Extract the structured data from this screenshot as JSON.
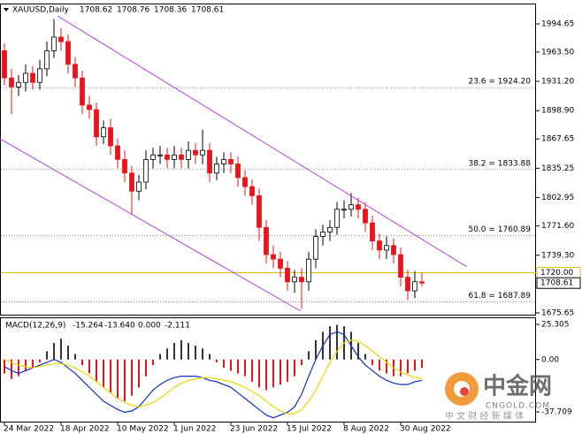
{
  "chart_data": [
    {
      "type": "candlestick",
      "title": "XAUUSD,Daily",
      "quote": [
        1708.62,
        1708.76,
        1708.36,
        1708.61
      ],
      "categories": [
        "24 Mar 2022",
        null,
        null,
        null,
        null,
        null,
        null,
        null,
        "18 Apr 2022",
        null,
        null,
        null,
        null,
        null,
        null,
        null,
        "10 May 2022",
        null,
        null,
        null,
        null,
        null,
        null,
        null,
        "1 Jun 2022",
        null,
        null,
        null,
        null,
        null,
        null,
        null,
        "23 Jun 2022",
        null,
        null,
        null,
        null,
        null,
        null,
        null,
        "15 Jul 2022",
        null,
        null,
        null,
        null,
        null,
        null,
        null,
        "8 Aug 2022",
        null,
        null,
        null,
        null,
        null,
        null,
        null,
        "30 Aug 2022",
        null,
        null,
        null
      ],
      "open": [
        1965,
        1935,
        1925,
        1930,
        1940,
        1930,
        1945,
        1965,
        1980,
        1975,
        1950,
        1935,
        1905,
        1900,
        1870,
        1880,
        1860,
        1845,
        1830,
        1810,
        1820,
        1845,
        1850,
        1850,
        1845,
        1850,
        1845,
        1855,
        1850,
        1855,
        1830,
        1840,
        1845,
        1840,
        1825,
        1815,
        1805,
        1770,
        1740,
        1735,
        1725,
        1710,
        1715,
        1710,
        1735,
        1760,
        1765,
        1770,
        1790,
        1790,
        1795,
        1790,
        1775,
        1755,
        1745,
        1750,
        1740,
        1715,
        1700,
        1710
      ],
      "high": [
        1973,
        1945,
        1938,
        1950,
        1948,
        1955,
        1975,
        2000,
        1990,
        1983,
        1958,
        1943,
        1915,
        1908,
        1888,
        1890,
        1868,
        1855,
        1838,
        1828,
        1855,
        1858,
        1860,
        1858,
        1860,
        1858,
        1865,
        1863,
        1878,
        1863,
        1848,
        1853,
        1853,
        1848,
        1833,
        1823,
        1813,
        1778,
        1750,
        1743,
        1733,
        1723,
        1725,
        1743,
        1768,
        1773,
        1778,
        1798,
        1800,
        1808,
        1803,
        1798,
        1783,
        1763,
        1760,
        1758,
        1748,
        1723,
        1722,
        1720
      ],
      "low": [
        1927,
        1895,
        1915,
        1920,
        1922,
        1922,
        1937,
        1957,
        1965,
        1940,
        1925,
        1895,
        1890,
        1860,
        1862,
        1850,
        1835,
        1820,
        1785,
        1800,
        1812,
        1835,
        1840,
        1835,
        1835,
        1835,
        1835,
        1840,
        1840,
        1820,
        1822,
        1830,
        1830,
        1815,
        1805,
        1795,
        1755,
        1730,
        1725,
        1715,
        1700,
        1698,
        1680,
        1700,
        1725,
        1750,
        1755,
        1762,
        1780,
        1782,
        1780,
        1765,
        1745,
        1735,
        1735,
        1730,
        1705,
        1690,
        1692,
        1705
      ],
      "close": [
        1935,
        1925,
        1930,
        1940,
        1930,
        1945,
        1965,
        1980,
        1975,
        1950,
        1935,
        1905,
        1900,
        1870,
        1880,
        1860,
        1845,
        1830,
        1810,
        1820,
        1845,
        1850,
        1850,
        1845,
        1850,
        1845,
        1855,
        1850,
        1855,
        1830,
        1840,
        1845,
        1840,
        1825,
        1815,
        1805,
        1770,
        1740,
        1735,
        1725,
        1710,
        1715,
        1710,
        1735,
        1760,
        1765,
        1770,
        1790,
        1790,
        1795,
        1790,
        1775,
        1755,
        1745,
        1750,
        1740,
        1715,
        1700,
        1710,
        1708.61
      ],
      "up_color": "#ffffff",
      "down_color": "#e8141a",
      "ylim": [
        1673.7,
        2016.1
      ],
      "yticks": [
        1994.65,
        {
          "value": 1963.5,
          "label": "1963.50"
        },
        {
          "value": 1931.2,
          "label": "1931.20"
        },
        {
          "value": 1898.9,
          "label": "1898.90"
        },
        1867.65,
        1835.25,
        1802.95,
        {
          "value": 1771.6,
          "label": "1771.60"
        },
        {
          "value": 1739.3,
          "label": "1739.30"
        },
        1675.65
      ],
      "fib_levels": [
        {
          "value": 1924.2,
          "label": "23.6 = 1924.20"
        },
        {
          "value": 1833.88,
          "label": "38.2 = 1833.88"
        },
        {
          "value": 1760.89,
          "label": "50.0 = 1760.89"
        },
        {
          "value": 1687.89,
          "label": "61.8 = 1687.89"
        }
      ],
      "price_lines": [
        {
          "value": 1720,
          "label": "1720.00",
          "color": "#e6c000"
        },
        {
          "value": 1708.61,
          "label": "1708.61",
          "color": "#000000"
        }
      ]
    },
    {
      "type": "macd",
      "title": "MACD(12,26,9)",
      "readout": [
        -15.264,
        {
          "value": -13.64,
          "label": "-13.640"
        },
        {
          "value": 0,
          "label": "0.000"
        },
        -2.111
      ],
      "series": [
        {
          "type": "histogram",
          "up_color": "#333333",
          "down_color": "#e8141a",
          "values": [
            -10,
            -14,
            -12,
            -8,
            -6,
            -2,
            6,
            12,
            15,
            10,
            4,
            -4,
            -10,
            -16,
            -20,
            -24,
            -28,
            -30,
            -26,
            -20,
            -12,
            -4,
            4,
            8,
            12,
            14,
            12,
            10,
            8,
            4,
            -2,
            -6,
            -8,
            -10,
            -12,
            -16,
            -20,
            -22,
            -20,
            -18,
            -16,
            -12,
            -4,
            6,
            14,
            20,
            24,
            25,
            24,
            20,
            12,
            4,
            -4,
            -8,
            -10,
            -12,
            -12,
            -10,
            -8,
            -6
          ]
        },
        {
          "type": "line",
          "color": "#1030d0",
          "values": [
            -5,
            -8,
            -10,
            -8,
            -6,
            -4,
            -2,
            0,
            -2,
            -6,
            -10,
            -15,
            -20,
            -25,
            -30,
            -33,
            -36,
            -38,
            -37,
            -34,
            -28,
            -22,
            -18,
            -15,
            -13,
            -12,
            -12,
            -12,
            -13,
            -15,
            -16,
            -18,
            -20,
            -24,
            -28,
            -32,
            -36,
            -40,
            -42,
            -40,
            -38,
            -34,
            -25,
            -12,
            0,
            10,
            18,
            20,
            18,
            10,
            2,
            -4,
            -8,
            -12,
            -15,
            -17,
            -18,
            -18,
            -16,
            -15
          ]
        },
        {
          "type": "line",
          "color": "#e8d800",
          "values": [
            0,
            -2,
            -4,
            -5,
            -6,
            -5,
            -4,
            -3,
            -3,
            -4,
            -6,
            -9,
            -12,
            -16,
            -20,
            -24,
            -28,
            -31,
            -33,
            -34,
            -33,
            -31,
            -28,
            -24,
            -20,
            -17,
            -15,
            -14,
            -13,
            -13,
            -14,
            -15,
            -16,
            -18,
            -20,
            -23,
            -26,
            -30,
            -34,
            -37,
            -39,
            -39,
            -36,
            -30,
            -22,
            -12,
            -2,
            6,
            12,
            14,
            13,
            10,
            6,
            2,
            -2,
            -6,
            -9,
            -11,
            -13,
            -13.64
          ]
        }
      ],
      "ylim": [
        -45.35,
        29.76
      ],
      "yticks": [
        25.305,
        {
          "value": 0,
          "label": "0.00"
        },
        -37.709
      ]
    }
  ],
  "watermark": {
    "name": "中金网",
    "domain": "CNGOLD.COM",
    "slogan": "中 文 财 经 新 媒 体"
  }
}
